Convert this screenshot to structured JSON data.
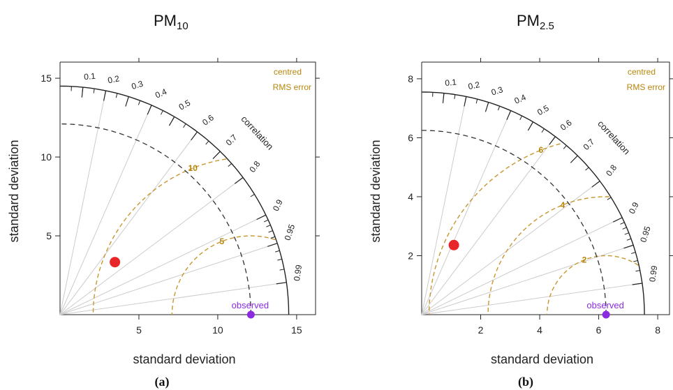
{
  "chart_data": [
    {
      "type": "taylor",
      "panel_label": "(a)",
      "title_main": "PM",
      "title_sub": "10",
      "xlabel": "standard deviation",
      "ylabel": "standard deviation",
      "axis_max": 16.2,
      "axis_ticks": [
        5,
        10,
        15
      ],
      "axis_tick_labels": [
        "5",
        "10",
        "15"
      ],
      "outer_arc_sd": 14.5,
      "observed_sd": 12.1,
      "observed_label": "observed",
      "correlation_label": "correlation",
      "correlation_ticks": [
        0.1,
        0.2,
        0.3,
        0.4,
        0.5,
        0.6,
        0.7,
        0.8,
        0.9,
        0.95,
        0.99
      ],
      "correlation_tick_labels": [
        "0.1",
        "0.2",
        "0.3",
        "0.4",
        "0.5",
        "0.6",
        "0.7",
        "0.8",
        "0.9",
        "0.95",
        "0.99"
      ],
      "radial_lines": [
        0.2,
        0.4,
        0.6,
        0.8,
        0.9
      ],
      "rms_legend": [
        "centred",
        "RMS error"
      ],
      "rms_contours": [
        5,
        10
      ],
      "rms_contour_labels": [
        "5",
        "10"
      ],
      "points": [
        {
          "std": 4.82,
          "corr": 0.722,
          "color": "#e8262a"
        }
      ]
    },
    {
      "type": "taylor",
      "panel_label": "(b)",
      "title_main": "PM",
      "title_sub": "2.5",
      "xlabel": "standard deviation",
      "ylabel": "standard deviation",
      "axis_max": 8.4,
      "axis_ticks": [
        2,
        4,
        6,
        8
      ],
      "axis_tick_labels": [
        "2",
        "4",
        "6",
        "8"
      ],
      "outer_arc_sd": 7.55,
      "observed_sd": 6.25,
      "observed_label": "observed",
      "correlation_label": "correlation",
      "correlation_ticks": [
        0.1,
        0.2,
        0.3,
        0.4,
        0.5,
        0.6,
        0.7,
        0.8,
        0.9,
        0.95,
        0.99
      ],
      "correlation_tick_labels": [
        "0.1",
        "0.2",
        "0.3",
        "0.4",
        "0.5",
        "0.6",
        "0.7",
        "0.8",
        "0.9",
        "0.95",
        "0.99"
      ],
      "radial_lines": [
        0.2,
        0.4,
        0.6,
        0.8,
        0.9
      ],
      "rms_legend": [
        "centred",
        "RMS error"
      ],
      "rms_contours": [
        2,
        4,
        6
      ],
      "rms_contour_labels": [
        "2",
        "4",
        "6"
      ],
      "points": [
        {
          "std": 2.6,
          "corr": 0.42,
          "color": "#e8262a"
        }
      ]
    }
  ],
  "colors": {
    "rms": "#c8962e",
    "observed": "#8a2be2",
    "grid": "#cccccc",
    "axis": "#222222"
  }
}
